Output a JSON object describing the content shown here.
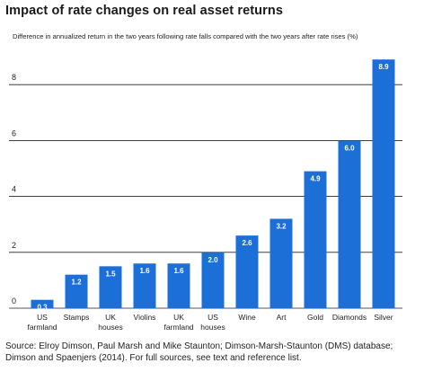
{
  "chart_data": {
    "type": "bar",
    "title": "Impact of rate changes on real asset returns",
    "subtitle": "Difference in annualized return in the two years following rate falls compared with the two years after rate rises (%)",
    "categories": [
      [
        "US",
        "farmland"
      ],
      [
        "Stamps"
      ],
      [
        "UK",
        "houses"
      ],
      [
        "Violins"
      ],
      [
        "UK",
        "farmland"
      ],
      [
        "US",
        "houses"
      ],
      [
        "Wine"
      ],
      [
        "Art"
      ],
      [
        "Gold"
      ],
      [
        "Diamonds"
      ],
      [
        "Silver"
      ]
    ],
    "values": [
      0.3,
      1.2,
      1.5,
      1.6,
      1.6,
      2.0,
      2.6,
      3.2,
      4.9,
      6.0,
      8.9
    ],
    "data_labels": [
      "0.3",
      "1.2",
      "1.5",
      "1.6",
      "1.6",
      "2.0",
      "2.6",
      "3.2",
      "4.9",
      "6.0",
      "8.9"
    ],
    "yticks": [
      0,
      2,
      4,
      6,
      8
    ],
    "ylim": [
      0,
      9.5
    ],
    "grid": true,
    "bar_color": "#1c6fd6",
    "source": "Source: Elroy Dimson, Paul Marsh and Mike Staunton; Dimson-Marsh-Staunton (DMS) database; Dimson and Spaenjers (2014). For full sources, see text and reference list."
  }
}
